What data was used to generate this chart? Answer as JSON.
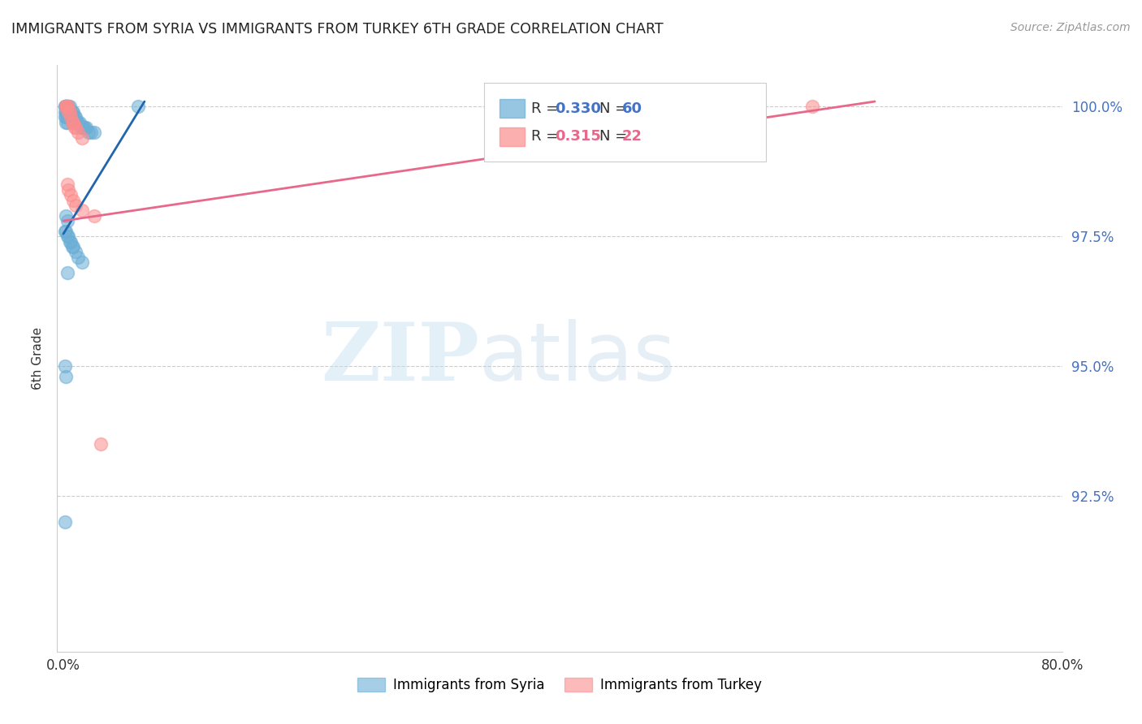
{
  "title": "IMMIGRANTS FROM SYRIA VS IMMIGRANTS FROM TURKEY 6TH GRADE CORRELATION CHART",
  "source": "Source: ZipAtlas.com",
  "ylabel": "6th Grade",
  "xlim": [
    -0.005,
    0.8
  ],
  "ylim": [
    0.895,
    1.008
  ],
  "xtick_positions": [
    0.0,
    0.1,
    0.2,
    0.3,
    0.4,
    0.5,
    0.6,
    0.7,
    0.8
  ],
  "xtick_labels": [
    "0.0%",
    "",
    "",
    "",
    "",
    "",
    "",
    "",
    "80.0%"
  ],
  "ytick_vals": [
    0.925,
    0.95,
    0.975,
    1.0
  ],
  "ytick_labels": [
    "92.5%",
    "95.0%",
    "97.5%",
    "100.0%"
  ],
  "syria_color": "#6baed6",
  "turkey_color": "#fc8d8d",
  "syria_R": 0.33,
  "syria_N": 60,
  "turkey_R": 0.315,
  "turkey_N": 22,
  "syria_line_color": "#2166ac",
  "turkey_line_color": "#e8688a",
  "watermark_zip": "ZIP",
  "watermark_atlas": "atlas",
  "syria_x": [
    0.001,
    0.001,
    0.001,
    0.001,
    0.002,
    0.002,
    0.002,
    0.002,
    0.002,
    0.003,
    0.003,
    0.003,
    0.003,
    0.003,
    0.004,
    0.004,
    0.004,
    0.005,
    0.005,
    0.005,
    0.006,
    0.006,
    0.007,
    0.007,
    0.007,
    0.008,
    0.008,
    0.009,
    0.009,
    0.01,
    0.01,
    0.011,
    0.012,
    0.013,
    0.014,
    0.015,
    0.016,
    0.017,
    0.018,
    0.02,
    0.022,
    0.025,
    0.001,
    0.002,
    0.003,
    0.004,
    0.005,
    0.006,
    0.007,
    0.008,
    0.01,
    0.012,
    0.015,
    0.003,
    0.001,
    0.002,
    0.001,
    0.06,
    0.002,
    0.003
  ],
  "syria_y": [
    1.0,
    1.0,
    0.999,
    0.998,
    1.0,
    1.0,
    0.999,
    0.998,
    0.997,
    1.0,
    1.0,
    0.999,
    0.998,
    0.997,
    1.0,
    0.999,
    0.998,
    1.0,
    0.999,
    0.998,
    0.999,
    0.998,
    0.999,
    0.998,
    0.997,
    0.999,
    0.998,
    0.998,
    0.997,
    0.998,
    0.997,
    0.997,
    0.997,
    0.997,
    0.996,
    0.996,
    0.996,
    0.996,
    0.996,
    0.995,
    0.995,
    0.995,
    0.976,
    0.976,
    0.975,
    0.975,
    0.974,
    0.974,
    0.973,
    0.973,
    0.972,
    0.971,
    0.97,
    0.968,
    0.95,
    0.948,
    0.92,
    1.0,
    0.979,
    0.978
  ],
  "turkey_x": [
    0.002,
    0.002,
    0.003,
    0.003,
    0.004,
    0.005,
    0.006,
    0.007,
    0.008,
    0.009,
    0.01,
    0.012,
    0.015,
    0.003,
    0.004,
    0.006,
    0.008,
    0.01,
    0.015,
    0.025,
    0.03,
    0.6
  ],
  "turkey_y": [
    1.0,
    1.0,
    1.0,
    1.0,
    0.999,
    0.999,
    0.998,
    0.997,
    0.997,
    0.996,
    0.996,
    0.995,
    0.994,
    0.985,
    0.984,
    0.983,
    0.982,
    0.981,
    0.98,
    0.979,
    0.935,
    1.0
  ],
  "syria_line_x": [
    0.0,
    0.065
  ],
  "turkey_line_x": [
    0.0,
    0.65
  ]
}
